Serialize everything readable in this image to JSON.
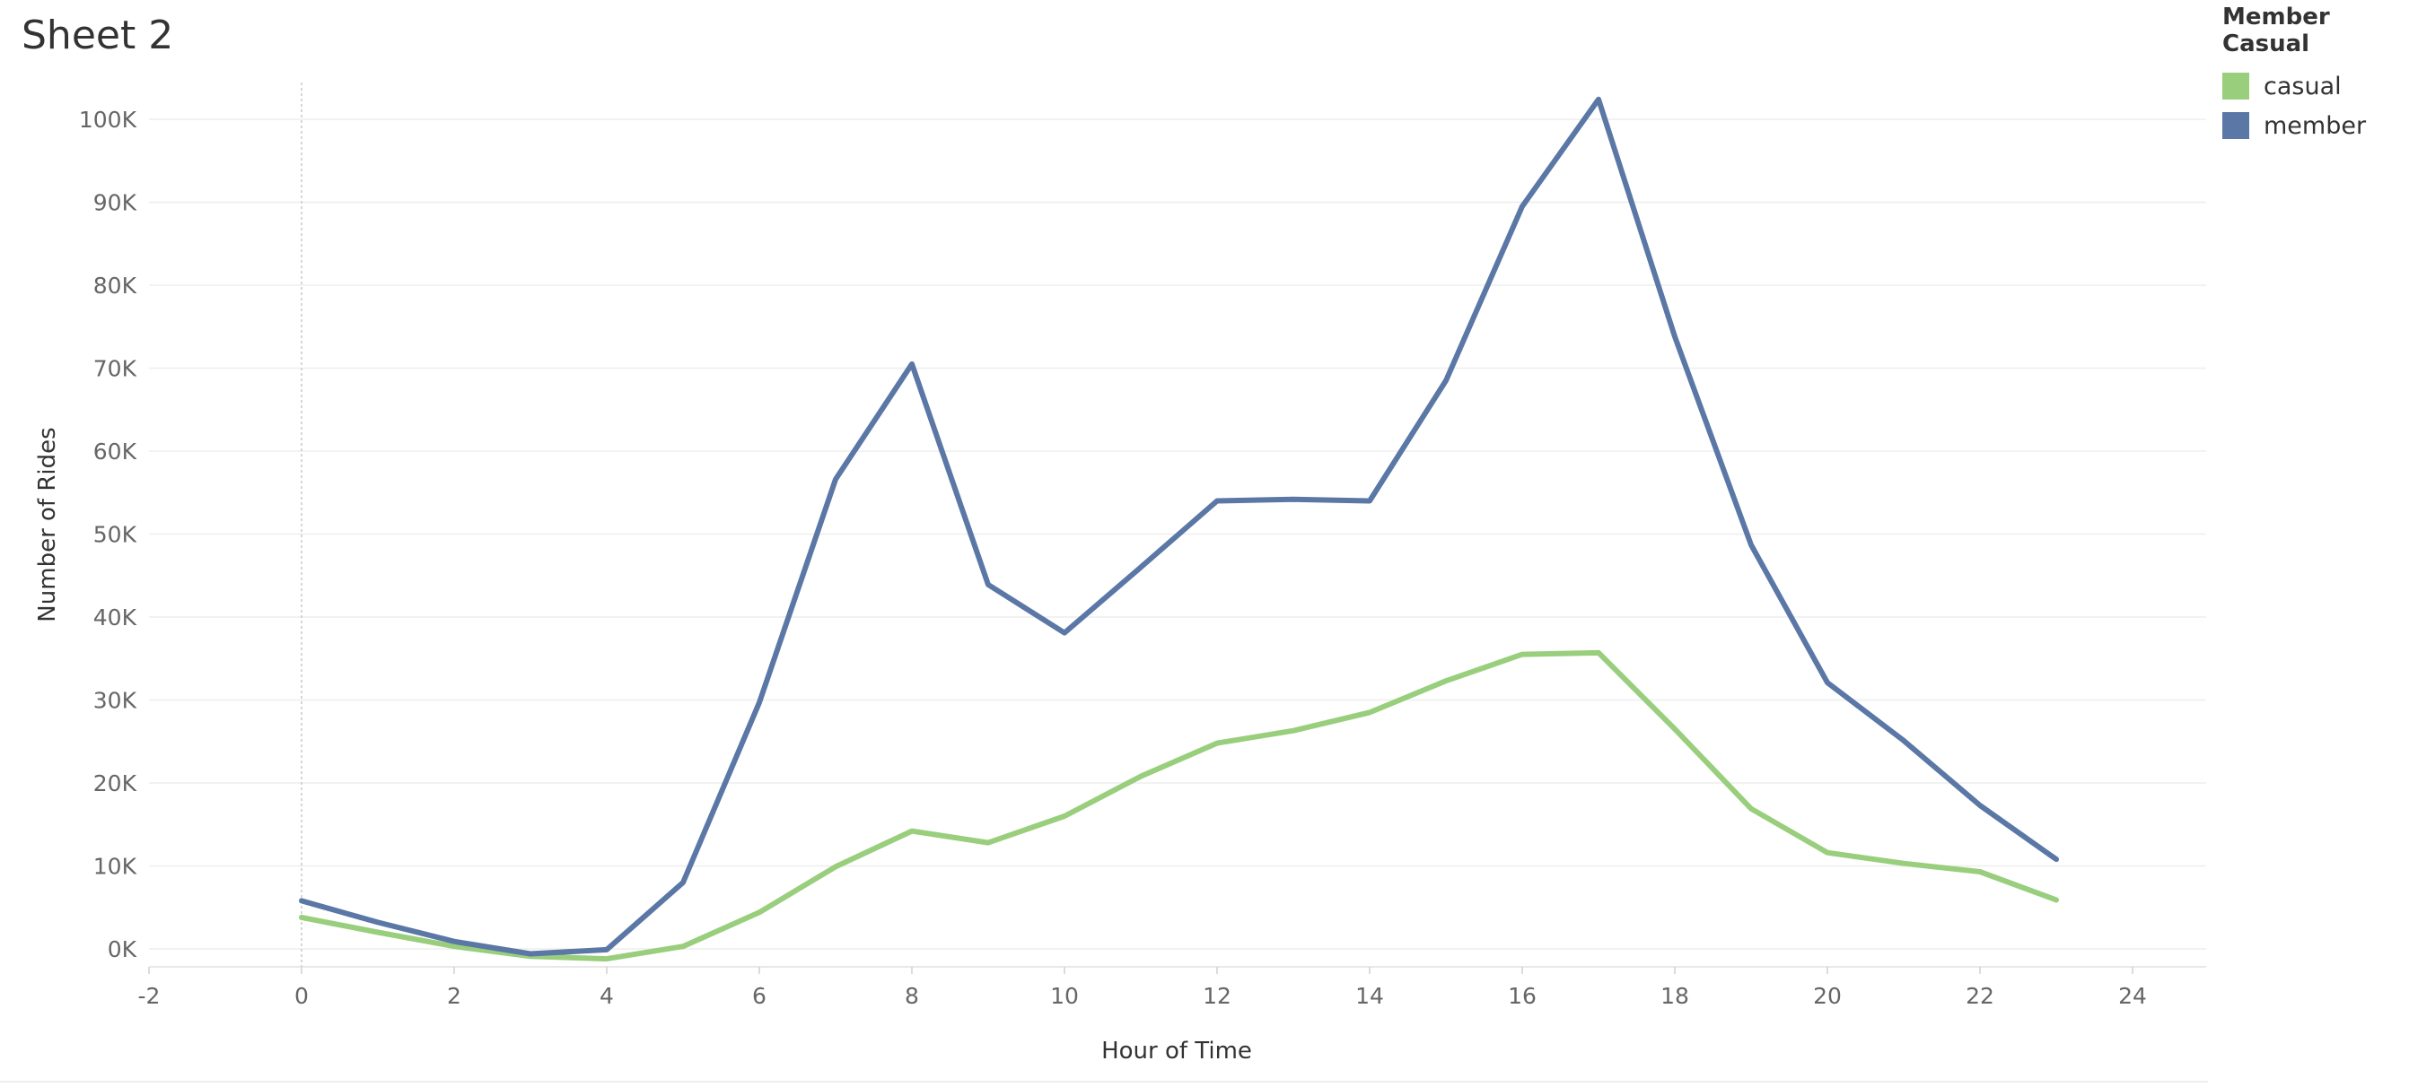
{
  "sheet": {
    "title": "Sheet 2"
  },
  "legend": {
    "title": "Member Casual",
    "items": [
      {
        "label": "casual",
        "color": "#98ce7c"
      },
      {
        "label": "member",
        "color": "#5a77a6"
      }
    ]
  },
  "chart_data": {
    "type": "line",
    "title": "Sheet 2",
    "xlabel": "Hour of Time",
    "ylabel": "Number of Rides",
    "xlim": [
      -2,
      24
    ],
    "ylim": [
      0,
      100000
    ],
    "x_ticks": [
      -2,
      0,
      2,
      4,
      6,
      8,
      10,
      12,
      14,
      16,
      18,
      20,
      22,
      24
    ],
    "x_tick_labels": [
      "-2",
      "0",
      "2",
      "4",
      "6",
      "8",
      "10",
      "12",
      "14",
      "16",
      "18",
      "20",
      "22",
      "24"
    ],
    "y_ticks": [
      0,
      10000,
      20000,
      30000,
      40000,
      50000,
      60000,
      70000,
      80000,
      90000,
      100000
    ],
    "y_tick_labels": [
      "0K",
      "10K",
      "20K",
      "30K",
      "40K",
      "50K",
      "60K",
      "70K",
      "80K",
      "90K",
      "100K"
    ],
    "grid": true,
    "legend_position": "top-right",
    "x": [
      0,
      1,
      2,
      3,
      4,
      5,
      6,
      7,
      8,
      9,
      10,
      11,
      12,
      13,
      14,
      15,
      16,
      17,
      18,
      19,
      20,
      21,
      22,
      23
    ],
    "series": [
      {
        "name": "casual",
        "color": "#98ce7c",
        "values": [
          3800,
          2000,
          300,
          -900,
          -1200,
          300,
          4400,
          9900,
          14200,
          12800,
          16000,
          20800,
          24800,
          26300,
          28500,
          32300,
          35500,
          35700,
          26500,
          16900,
          11600,
          10300,
          9300,
          5900
        ]
      },
      {
        "name": "member",
        "color": "#5a77a6",
        "values": [
          5800,
          3200,
          900,
          -600,
          -100,
          8000,
          29700,
          56600,
          70500,
          43900,
          38100,
          46000,
          54000,
          54200,
          54000,
          68500,
          89500,
          102400,
          73800,
          48700,
          32100,
          25100,
          17300,
          10800
        ]
      }
    ]
  }
}
